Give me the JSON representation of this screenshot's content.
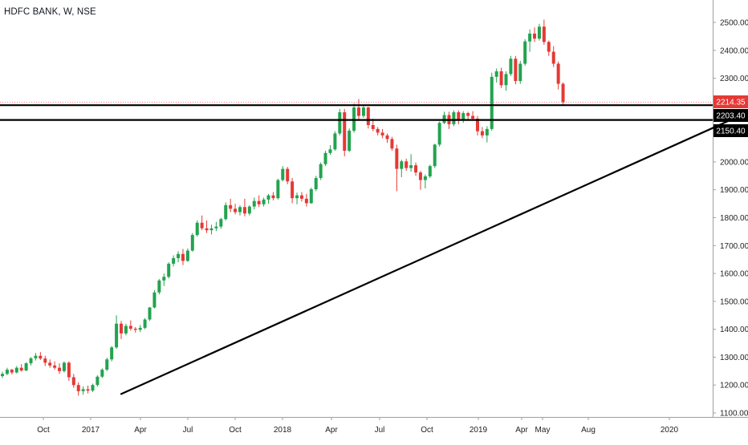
{
  "header": {
    "symbol_title": "HDFC BANK, W, NSE"
  },
  "colors": {
    "up": "#26a69a",
    "up_body": "#23a34f",
    "down": "#e53935",
    "axis_text": "#222222",
    "line": "#000000",
    "price_line": "#ff5252"
  },
  "chart_data": {
    "type": "candlestick",
    "title": "HDFC BANK, W, NSE",
    "y_ticks": [
      "2500.00",
      "2400.00",
      "2300.00",
      "2000.00",
      "1900.00",
      "1800.00",
      "1700.00",
      "1600.00",
      "1500.00",
      "1400.00",
      "1300.00",
      "1200.00",
      "1100.00"
    ],
    "y_tick_values": [
      2500,
      2400,
      2300,
      2000,
      1900,
      1800,
      1700,
      1600,
      1500,
      1400,
      1300,
      1200,
      1100
    ],
    "x_ticks": [
      "Oct",
      "2017",
      "Apr",
      "Jul",
      "Oct",
      "2018",
      "Apr",
      "Jul",
      "Oct",
      "2019",
      "Apr",
      "May",
      "Aug",
      "2020"
    ],
    "ylim": [
      1080,
      2560
    ],
    "price_labels": [
      {
        "value": "2214.35",
        "price": 2214.35,
        "style": "red"
      },
      {
        "value": "2203.40",
        "price": 2203.4,
        "style": "dark"
      },
      {
        "value": "2150.40",
        "price": 2150.4,
        "style": "dark"
      }
    ],
    "horizontal_lines": [
      2203.4,
      2150.4
    ],
    "trendline": {
      "from": {
        "date": "2016-12-19",
        "price": 1168
      },
      "to": {
        "date": "2019-08-12",
        "price": 2225
      }
    },
    "candles": [
      [
        1232,
        1248,
        1225,
        1240
      ],
      [
        1240,
        1262,
        1235,
        1255
      ],
      [
        1255,
        1258,
        1238,
        1245
      ],
      [
        1245,
        1268,
        1242,
        1262
      ],
      [
        1262,
        1275,
        1248,
        1252
      ],
      [
        1252,
        1282,
        1250,
        1278
      ],
      [
        1278,
        1300,
        1270,
        1296
      ],
      [
        1296,
        1315,
        1288,
        1305
      ],
      [
        1305,
        1318,
        1290,
        1295
      ],
      [
        1295,
        1305,
        1268,
        1280
      ],
      [
        1280,
        1292,
        1262,
        1270
      ],
      [
        1270,
        1285,
        1255,
        1262
      ],
      [
        1262,
        1278,
        1240,
        1250
      ],
      [
        1250,
        1285,
        1245,
        1280
      ],
      [
        1280,
        1285,
        1215,
        1228
      ],
      [
        1228,
        1240,
        1190,
        1200
      ],
      [
        1200,
        1210,
        1162,
        1178
      ],
      [
        1178,
        1195,
        1165,
        1185
      ],
      [
        1185,
        1198,
        1170,
        1180
      ],
      [
        1180,
        1205,
        1175,
        1200
      ],
      [
        1200,
        1235,
        1195,
        1230
      ],
      [
        1230,
        1260,
        1225,
        1255
      ],
      [
        1255,
        1298,
        1250,
        1292
      ],
      [
        1292,
        1340,
        1285,
        1335
      ],
      [
        1335,
        1450,
        1330,
        1420
      ],
      [
        1420,
        1430,
        1365,
        1385
      ],
      [
        1385,
        1420,
        1378,
        1412
      ],
      [
        1412,
        1432,
        1395,
        1402
      ],
      [
        1402,
        1408,
        1388,
        1398
      ],
      [
        1398,
        1415,
        1390,
        1405
      ],
      [
        1405,
        1440,
        1400,
        1435
      ],
      [
        1435,
        1480,
        1430,
        1478
      ],
      [
        1478,
        1540,
        1475,
        1532
      ],
      [
        1532,
        1580,
        1525,
        1575
      ],
      [
        1575,
        1600,
        1555,
        1588
      ],
      [
        1588,
        1640,
        1582,
        1635
      ],
      [
        1635,
        1665,
        1625,
        1655
      ],
      [
        1655,
        1680,
        1640,
        1670
      ],
      [
        1670,
        1688,
        1630,
        1645
      ],
      [
        1645,
        1690,
        1642,
        1682
      ],
      [
        1682,
        1745,
        1678,
        1738
      ],
      [
        1738,
        1790,
        1732,
        1782
      ],
      [
        1782,
        1808,
        1755,
        1762
      ],
      [
        1762,
        1790,
        1745,
        1755
      ],
      [
        1755,
        1775,
        1740,
        1762
      ],
      [
        1762,
        1785,
        1752,
        1768
      ],
      [
        1768,
        1800,
        1760,
        1795
      ],
      [
        1795,
        1855,
        1790,
        1845
      ],
      [
        1845,
        1868,
        1820,
        1832
      ],
      [
        1832,
        1850,
        1812,
        1820
      ],
      [
        1820,
        1845,
        1808,
        1838
      ],
      [
        1838,
        1868,
        1805,
        1815
      ],
      [
        1815,
        1845,
        1808,
        1840
      ],
      [
        1840,
        1872,
        1830,
        1860
      ],
      [
        1860,
        1880,
        1838,
        1848
      ],
      [
        1848,
        1872,
        1840,
        1865
      ],
      [
        1865,
        1885,
        1850,
        1880
      ],
      [
        1880,
        1892,
        1862,
        1870
      ],
      [
        1870,
        1940,
        1865,
        1935
      ],
      [
        1935,
        1985,
        1930,
        1975
      ],
      [
        1975,
        1982,
        1920,
        1930
      ],
      [
        1930,
        1942,
        1852,
        1870
      ],
      [
        1870,
        1890,
        1848,
        1880
      ],
      [
        1880,
        1892,
        1858,
        1868
      ],
      [
        1868,
        1885,
        1840,
        1852
      ],
      [
        1852,
        1908,
        1850,
        1902
      ],
      [
        1902,
        1950,
        1895,
        1942
      ],
      [
        1942,
        1998,
        1935,
        1992
      ],
      [
        1992,
        2040,
        1985,
        2032
      ],
      [
        2032,
        2060,
        2025,
        2045
      ],
      [
        2045,
        2110,
        2040,
        2102
      ],
      [
        2102,
        2190,
        2095,
        2178
      ],
      [
        2178,
        2190,
        2020,
        2040
      ],
      [
        2040,
        2120,
        2035,
        2112
      ],
      [
        2112,
        2210,
        2105,
        2195
      ],
      [
        2195,
        2225,
        2150,
        2165
      ],
      [
        2165,
        2205,
        2158,
        2195
      ],
      [
        2195,
        2198,
        2120,
        2132
      ],
      [
        2132,
        2155,
        2110,
        2118
      ],
      [
        2118,
        2125,
        2095,
        2105
      ],
      [
        2105,
        2118,
        2085,
        2095
      ],
      [
        2095,
        2102,
        2068,
        2082
      ],
      [
        2082,
        2090,
        2040,
        2048
      ],
      [
        2048,
        2062,
        1895,
        1975
      ],
      [
        1975,
        2008,
        1945,
        2002
      ],
      [
        2002,
        2012,
        1968,
        1978
      ],
      [
        1978,
        2028,
        1965,
        1988
      ],
      [
        1988,
        1998,
        1950,
        1962
      ],
      [
        1962,
        1968,
        1900,
        1935
      ],
      [
        1935,
        1955,
        1905,
        1948
      ],
      [
        1948,
        1990,
        1942,
        1985
      ],
      [
        1985,
        2065,
        1978,
        2062
      ],
      [
        2062,
        2145,
        2055,
        2140
      ],
      [
        2140,
        2180,
        2135,
        2168
      ],
      [
        2168,
        2180,
        2118,
        2135
      ],
      [
        2135,
        2185,
        2128,
        2178
      ],
      [
        2178,
        2185,
        2135,
        2148
      ],
      [
        2148,
        2182,
        2140,
        2175
      ],
      [
        2175,
        2180,
        2150,
        2165
      ],
      [
        2165,
        2182,
        2148,
        2155
      ],
      [
        2155,
        2165,
        2095,
        2110
      ],
      [
        2110,
        2125,
        2085,
        2095
      ],
      [
        2095,
        2128,
        2070,
        2118
      ],
      [
        2118,
        2320,
        2112,
        2305
      ],
      [
        2305,
        2335,
        2285,
        2325
      ],
      [
        2325,
        2338,
        2265,
        2275
      ],
      [
        2275,
        2325,
        2255,
        2315
      ],
      [
        2315,
        2380,
        2308,
        2370
      ],
      [
        2370,
        2380,
        2278,
        2290
      ],
      [
        2290,
        2362,
        2280,
        2352
      ],
      [
        2352,
        2440,
        2345,
        2432
      ],
      [
        2432,
        2475,
        2395,
        2460
      ],
      [
        2460,
        2482,
        2430,
        2442
      ],
      [
        2442,
        2495,
        2435,
        2485
      ],
      [
        2485,
        2510,
        2420,
        2430
      ],
      [
        2430,
        2435,
        2380,
        2395
      ],
      [
        2395,
        2415,
        2340,
        2352
      ],
      [
        2352,
        2360,
        2260,
        2280
      ],
      [
        2280,
        2285,
        2205,
        2214.35
      ]
    ],
    "y_label": "",
    "x_label": ""
  }
}
